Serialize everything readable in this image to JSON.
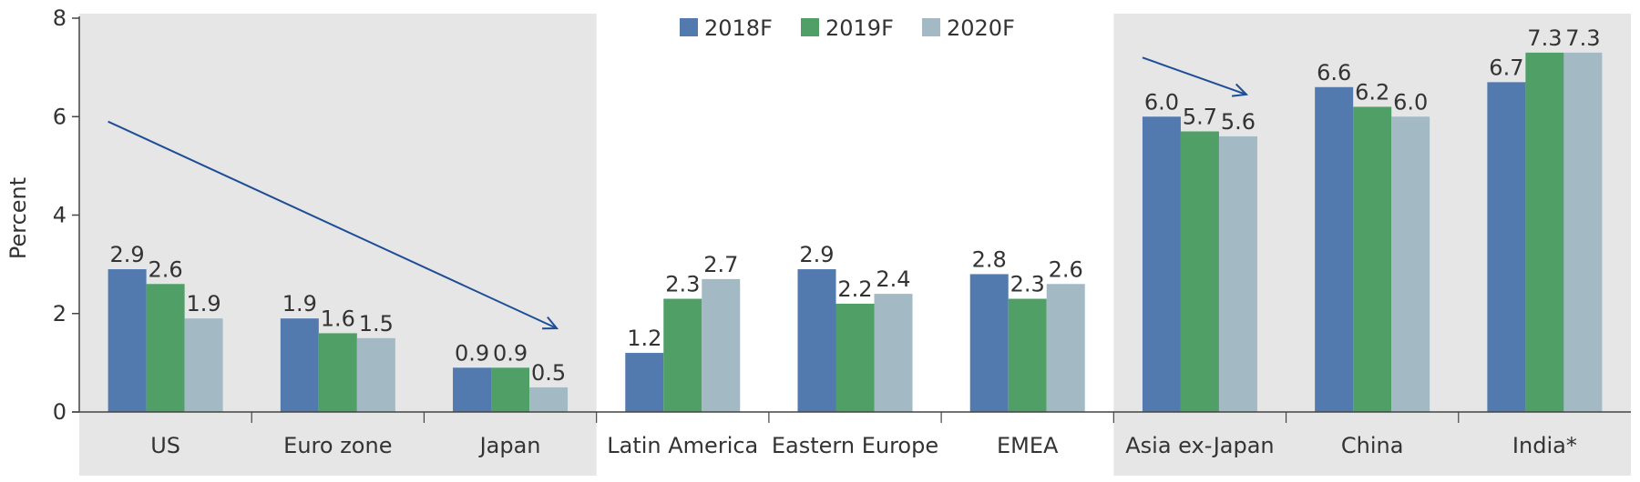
{
  "chart_data": {
    "type": "bar",
    "title": "",
    "xlabel": "",
    "ylabel": "Percent",
    "ylim": [
      0,
      8
    ],
    "yticks": [
      0,
      2,
      4,
      6,
      8
    ],
    "categories": [
      "US",
      "Euro zone",
      "Japan",
      "Latin America",
      "Eastern Europe",
      "EMEA",
      "Asia ex-Japan",
      "China",
      "India*"
    ],
    "series": [
      {
        "name": "2018F",
        "color": "#527aaf",
        "values": [
          2.9,
          1.9,
          0.9,
          1.2,
          2.9,
          2.8,
          6.0,
          6.6,
          6.7
        ],
        "labels": [
          "2.9",
          "1.9",
          "0.9",
          "1.2",
          "2.9",
          "2.8",
          "6.0",
          "6.6",
          "6.7"
        ]
      },
      {
        "name": "2019F",
        "color": "#4f9f66",
        "values": [
          2.6,
          1.6,
          0.9,
          2.3,
          2.2,
          2.3,
          5.7,
          6.2,
          7.3
        ],
        "labels": [
          "2.6",
          "1.6",
          "0.9",
          "2.3",
          "2.2",
          "2.3",
          "5.7",
          "6.2",
          "7.3"
        ]
      },
      {
        "name": "2020F",
        "color": "#a3bac5",
        "values": [
          1.9,
          1.5,
          0.5,
          2.7,
          2.4,
          2.6,
          5.6,
          6.0,
          7.3
        ],
        "labels": [
          "1.9",
          "1.5",
          "0.5",
          "2.7",
          "2.4",
          "2.6",
          "5.6",
          "6.0",
          "7.3"
        ]
      }
    ],
    "shaded_groups": [
      [
        0,
        2
      ],
      [
        6,
        8
      ]
    ],
    "shade_color": "#e6e6e6",
    "arrow_color": "#1f4e96",
    "arrows": [
      {
        "from": {
          "category": 0,
          "value": 5.9
        },
        "to": {
          "category": 2,
          "value": 1.7
        }
      },
      {
        "from": {
          "category": 6,
          "value": 7.2
        },
        "to": {
          "category": 6,
          "value": 6.45
        }
      }
    ],
    "legend_position": "top-center",
    "grid": false
  }
}
